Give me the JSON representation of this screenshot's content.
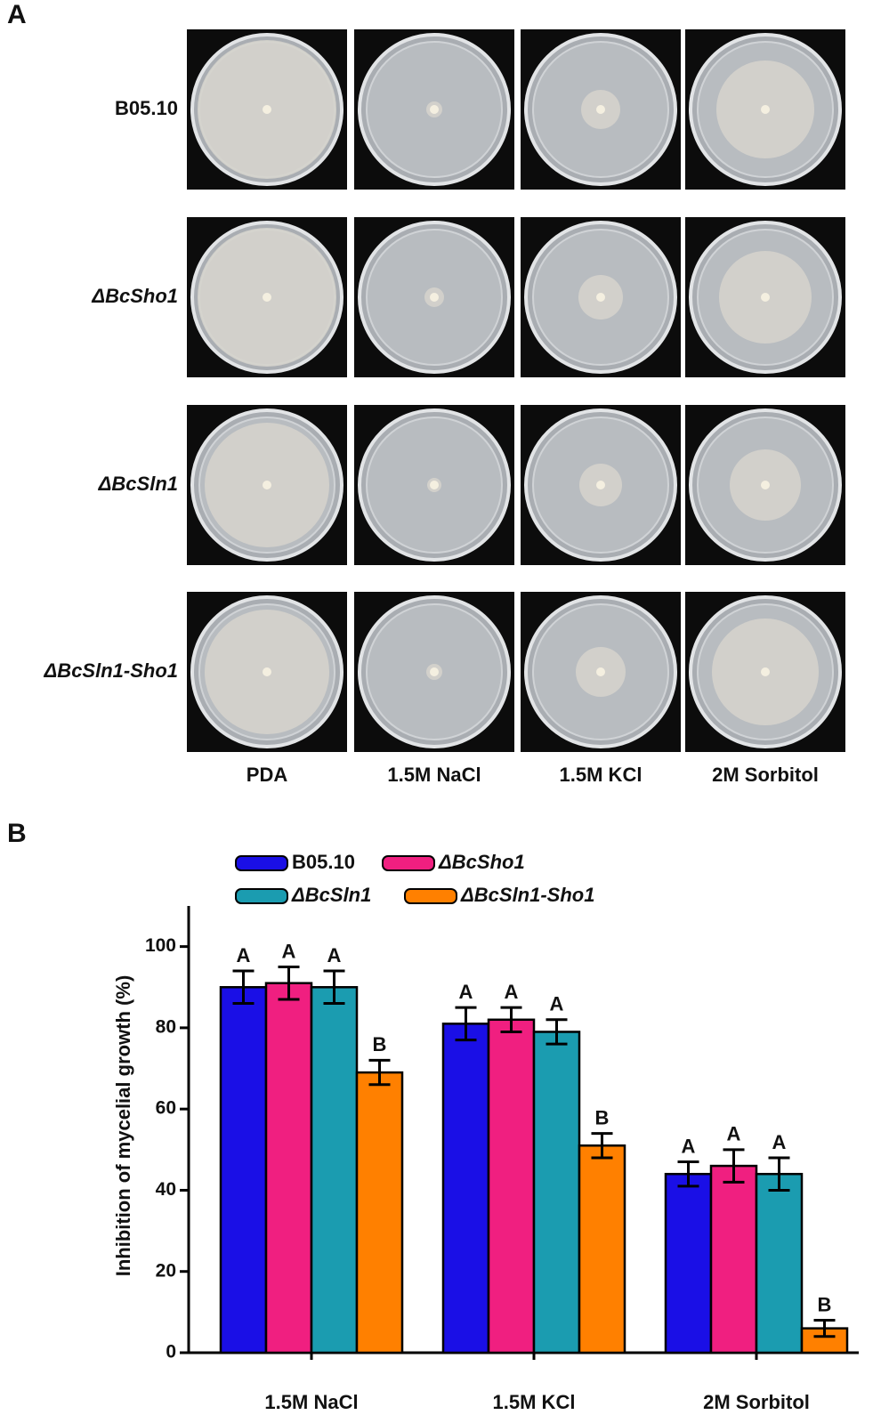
{
  "panel_a": {
    "label": "A",
    "rows": [
      "B05.10",
      "ΔBcSho1",
      "ΔBcSln1",
      "ΔBcSln1-Sho1"
    ],
    "columns": [
      "PDA",
      "1.5M NaCl",
      "1.5M KCl",
      "2M Sorbitol"
    ]
  },
  "chart_data": {
    "type": "bar",
    "panel_label": "B",
    "y_label": "Inhibition of mycelial growth (%)",
    "categories": [
      "1.5M NaCl",
      "1.5M KCl",
      "2M Sorbitol"
    ],
    "series": [
      {
        "name": "B05.10",
        "color": "#1a0fe6",
        "values": [
          90,
          81,
          44
        ],
        "errors": [
          4,
          4,
          3
        ],
        "letters": [
          "A",
          "A",
          "A"
        ]
      },
      {
        "name": "ΔBcSho1",
        "color": "#f01f80",
        "values": [
          91,
          82,
          46
        ],
        "errors": [
          4,
          3,
          4
        ],
        "letters": [
          "A",
          "A",
          "A"
        ]
      },
      {
        "name": "ΔBcSln1",
        "color": "#1b9cb0",
        "values": [
          90,
          79,
          44
        ],
        "errors": [
          4,
          3,
          4
        ],
        "letters": [
          "A",
          "A",
          "A"
        ]
      },
      {
        "name": "ΔBcSln1-Sho1",
        "color": "#ff8000",
        "values": [
          69,
          51,
          6
        ],
        "errors": [
          3,
          3,
          2
        ],
        "letters": [
          "B",
          "B",
          "B"
        ]
      }
    ],
    "ylim": [
      0,
      110
    ],
    "yticks": [
      0,
      20,
      40,
      60,
      80,
      100
    ]
  }
}
